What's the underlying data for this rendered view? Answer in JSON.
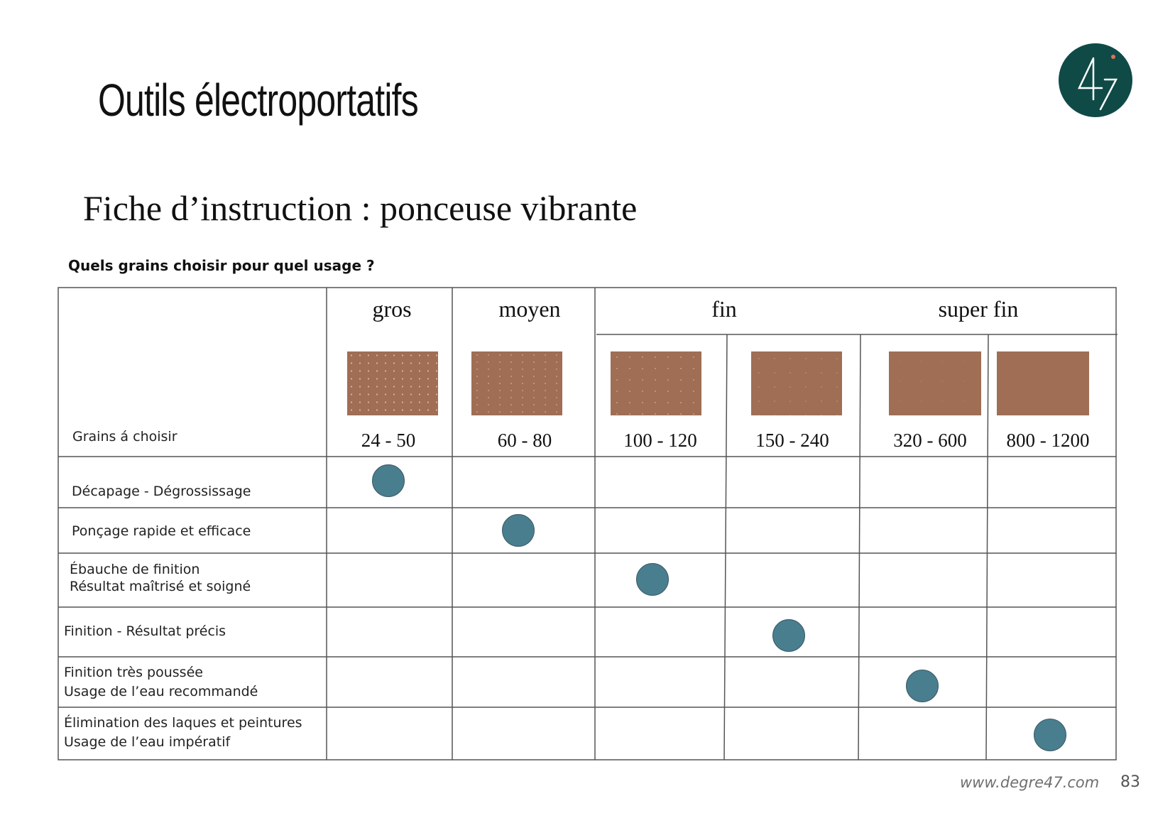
{
  "header": {
    "title": "Outils électroportatifs",
    "logo_text": "47"
  },
  "section": {
    "subtitle": "Fiche d’instruction : ponceuse vibrante",
    "question": "Quels grains choisir pour quel usage  ?"
  },
  "table": {
    "corner_label": "Grains á choisir",
    "categories": [
      "gros",
      "moyen",
      "fin",
      "super fin"
    ],
    "grits": [
      "24 - 50",
      "60 - 80",
      "100 - 120",
      "150 - 240",
      "320 - 600",
      "800 - 1200"
    ],
    "rows": [
      {
        "lines": [
          "Décapage - Dégrossissage"
        ],
        "grit_index": 0
      },
      {
        "lines": [
          "Ponçage rapide et efficace"
        ],
        "grit_index": 1
      },
      {
        "lines": [
          "Ébauche de finition",
          "Résultat maîtrisé et soigné"
        ],
        "grit_index": 2
      },
      {
        "lines": [
          "Finition - Résultat précis"
        ],
        "grit_index": 3
      },
      {
        "lines": [
          "Finition très poussée",
          "Usage de l’eau recommandé"
        ],
        "grit_index": 4
      },
      {
        "lines": [
          "Élimination des laques et peintures",
          "Usage de l’eau impératif"
        ],
        "grit_index": 5
      }
    ]
  },
  "colors": {
    "swatch": "#9f6e55",
    "dot": "#497e8f",
    "logo_bg": "#0f4a47",
    "logo_accent": "#e0705a"
  },
  "footer": {
    "url": "www.degre47.com",
    "page_number": "83"
  }
}
